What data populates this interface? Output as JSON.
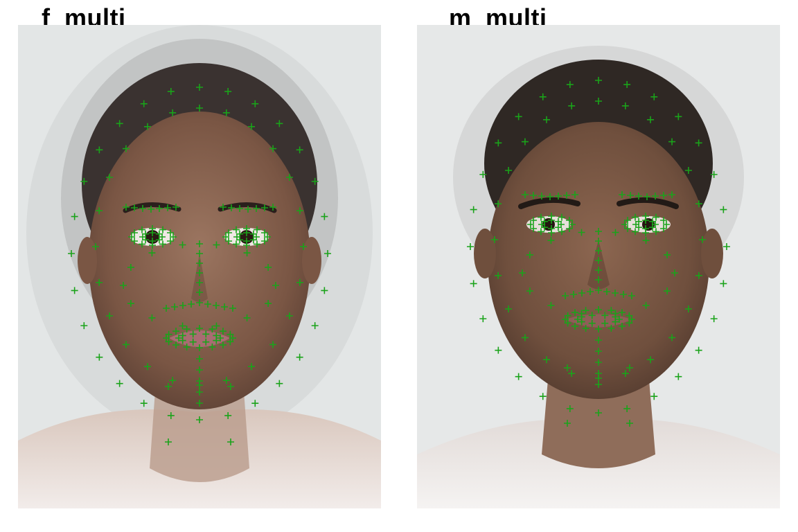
{
  "panels": [
    {
      "title": "f_multi",
      "landmark_color": "#1aa31a",
      "skin_color": "#8a6550",
      "hair_color": "#3a3230",
      "lip_color": "#a96c72",
      "background_color": "#e6e8e8"
    },
    {
      "title": "m_multi",
      "landmark_color": "#1aa31a",
      "skin_color": "#7d5a45",
      "hair_color": "#2f2824",
      "lip_color": "#8f5e58",
      "background_color": "#e6e8e8"
    }
  ]
}
